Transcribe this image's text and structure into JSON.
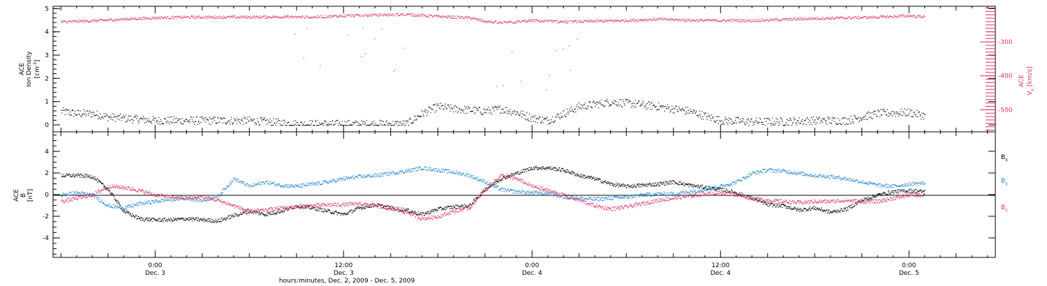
{
  "colors": {
    "black": "#000000",
    "magenta": "#e0325f",
    "blue": "#1f86d6"
  },
  "chart_data": [
    {
      "type": "scatter",
      "ylabel": [
        "ACE",
        "Ion Density",
        "[cm",
        "-3",
        "]"
      ],
      "ylabel_right": [
        "ACE",
        "V",
        "x",
        "[km/s]"
      ],
      "xlim_hours": [
        -6.5,
        53.5
      ],
      "ylim": [
        -0.3,
        5.1
      ],
      "yticks": [
        0,
        1,
        2,
        3,
        4,
        5
      ],
      "right_ylim": [
        -565,
        -195
      ],
      "right_yticks": [
        -300,
        -400,
        -500
      ],
      "series": [
        {
          "color": "#000000",
          "x": [
            -6,
            -5,
            -4,
            -3,
            -2,
            -1,
            0,
            2,
            4,
            6,
            8,
            9,
            10,
            12,
            14,
            16,
            17,
            18,
            19,
            20,
            21,
            22,
            23,
            24,
            25,
            26,
            27,
            28,
            29,
            30,
            32,
            34,
            36,
            38,
            40,
            42,
            44,
            46,
            48,
            49
          ],
          "y": [
            0.6,
            0.5,
            0.5,
            0.35,
            0.3,
            0.25,
            0.2,
            0.2,
            0.2,
            0.2,
            0.1,
            0.05,
            0.05,
            0.05,
            0.05,
            0.05,
            0.5,
            0.8,
            0.7,
            0.65,
            0.6,
            0.7,
            0.55,
            0.3,
            0.2,
            0.5,
            0.8,
            0.9,
            1.0,
            0.95,
            0.8,
            0.6,
            0.2,
            0.15,
            0.15,
            0.2,
            0.2,
            0.5,
            0.55,
            0.4
          ]
        },
        {
          "color": "#e0325f",
          "axis": "right",
          "x": [
            -6,
            -4,
            -2,
            0,
            2,
            4,
            6,
            8,
            10,
            12,
            14,
            16,
            18,
            20,
            21,
            22,
            23,
            24,
            25,
            26,
            28,
            30,
            32,
            34,
            36,
            38,
            40,
            42,
            44,
            46,
            48,
            49
          ],
          "y": [
            -240,
            -237,
            -232,
            -228,
            -226,
            -226,
            -226,
            -225,
            -226,
            -222,
            -220,
            -218,
            -224,
            -228,
            -238,
            -243,
            -240,
            -236,
            -238,
            -240,
            -238,
            -236,
            -232,
            -235,
            -236,
            -236,
            -233,
            -230,
            -228,
            -226,
            -222,
            -225
          ]
        }
      ]
    },
    {
      "type": "scatter",
      "ylabel": [
        "ACE",
        "B",
        "[nT]"
      ],
      "xlabel": "hours:minutes, Dec.  2, 2009 - Dec.  5, 2009",
      "xlim_hours": [
        -6.5,
        53.5
      ],
      "ylim": [
        -5.8,
        5.8
      ],
      "yticks": [
        4,
        2,
        0,
        -2,
        -4
      ],
      "hline": 0,
      "x_tick_labels": [
        {
          "hour": 0,
          "time": "0:00",
          "date": "Dec. 3"
        },
        {
          "hour": 12,
          "time": "12:00",
          "date": "Dec. 3"
        },
        {
          "hour": 24,
          "time": "0:00",
          "date": "Dec. 4"
        },
        {
          "hour": 36,
          "time": "12:00",
          "date": "Dec. 4"
        },
        {
          "hour": 48,
          "time": "0:00",
          "date": "Dec. 5"
        }
      ],
      "legend": [
        {
          "text": "B",
          "sub": "x",
          "color": "#000000"
        },
        {
          "text": "B",
          "sub": "y",
          "color": "#1f86d6"
        },
        {
          "text": "B",
          "sub": "z",
          "color": "#e0325f"
        }
      ],
      "series": [
        {
          "name": "Bx",
          "color": "#000000",
          "x": [
            -6,
            -5,
            -4,
            -3,
            -2,
            -1,
            0,
            1,
            2,
            3,
            4,
            5,
            6,
            7,
            8,
            9,
            10,
            11,
            12,
            13,
            14,
            15,
            16,
            17,
            18,
            19,
            20,
            21,
            22,
            23,
            24,
            25,
            26,
            27,
            28,
            29,
            30,
            31,
            32,
            33,
            34,
            35,
            36,
            37,
            38,
            39,
            40,
            41,
            42,
            43,
            44,
            45,
            46,
            47,
            48,
            49
          ],
          "y": [
            1.8,
            1.8,
            1.7,
            0.5,
            -1.5,
            -2.2,
            -2.3,
            -2.3,
            -2.2,
            -2.3,
            -2.4,
            -1.9,
            -1.5,
            -1.8,
            -1.5,
            -1.0,
            -1.2,
            -1.5,
            -1.8,
            -1.2,
            -0.9,
            -1.2,
            -1.4,
            -1.8,
            -1.3,
            -1.1,
            -1.0,
            0.5,
            1.5,
            2.0,
            2.5,
            2.5,
            2.3,
            1.8,
            1.5,
            1.0,
            0.8,
            0.9,
            1.0,
            1.2,
            0.9,
            0.7,
            0.5,
            0.2,
            -0.3,
            -0.9,
            -1.0,
            -1.4,
            -1.2,
            -1.6,
            -1.3,
            -0.5,
            0.0,
            0.3,
            0.4,
            0.3
          ]
        },
        {
          "name": "By",
          "color": "#1f86d6",
          "x": [
            -6,
            -5,
            -4,
            -3,
            -2,
            -1,
            0,
            1,
            2,
            3,
            4,
            5,
            6,
            7,
            8,
            9,
            10,
            11,
            12,
            13,
            14,
            15,
            16,
            17,
            18,
            19,
            20,
            21,
            22,
            23,
            24,
            25,
            26,
            27,
            28,
            29,
            30,
            31,
            32,
            33,
            34,
            35,
            36,
            37,
            38,
            39,
            40,
            41,
            42,
            43,
            44,
            45,
            46,
            47,
            48,
            49
          ],
          "y": [
            0.0,
            0.2,
            0.0,
            -1.0,
            -1.2,
            -0.8,
            -0.6,
            -0.4,
            -0.3,
            -0.5,
            -0.1,
            1.5,
            0.8,
            1.2,
            0.9,
            0.8,
            1.0,
            1.2,
            1.5,
            1.7,
            1.8,
            2.0,
            2.2,
            2.5,
            2.3,
            2.1,
            1.8,
            1.2,
            0.5,
            0.3,
            0.2,
            0.2,
            -0.2,
            -0.3,
            -0.4,
            -0.3,
            -0.2,
            0.0,
            0.1,
            0.1,
            0.3,
            0.5,
            0.8,
            1.2,
            2.0,
            2.3,
            2.2,
            2.0,
            1.8,
            1.7,
            1.5,
            1.2,
            0.9,
            0.8,
            1.0,
            1.1
          ]
        },
        {
          "name": "Bz",
          "color": "#e0325f",
          "x": [
            -6,
            -5,
            -4,
            -3,
            -2,
            -1,
            0,
            1,
            2,
            3,
            4,
            5,
            6,
            7,
            8,
            9,
            10,
            11,
            12,
            13,
            14,
            15,
            16,
            17,
            18,
            19,
            20,
            21,
            22,
            23,
            24,
            25,
            26,
            27,
            28,
            29,
            30,
            31,
            32,
            33,
            34,
            35,
            36,
            37,
            38,
            39,
            40,
            41,
            42,
            43,
            44,
            45,
            46,
            47,
            48,
            49
          ],
          "y": [
            -0.6,
            -0.3,
            0.0,
            0.8,
            0.7,
            0.4,
            0.0,
            -0.2,
            -0.3,
            -0.2,
            -0.5,
            -1.0,
            -1.5,
            -1.4,
            -1.2,
            -1.1,
            -1.0,
            -0.9,
            -0.9,
            -0.8,
            -1.0,
            -1.3,
            -1.6,
            -2.2,
            -2.0,
            -1.5,
            -1.2,
            0.5,
            1.8,
            1.5,
            0.8,
            0.4,
            0.0,
            -0.5,
            -1.0,
            -1.3,
            -1.1,
            -0.8,
            -0.5,
            -0.3,
            -0.1,
            0.1,
            0.2,
            0.0,
            -0.3,
            -0.5,
            -0.6,
            -0.7,
            -0.6,
            -0.6,
            -0.5,
            -0.6,
            -0.6,
            -0.3,
            0.0,
            0.0
          ]
        }
      ]
    }
  ]
}
